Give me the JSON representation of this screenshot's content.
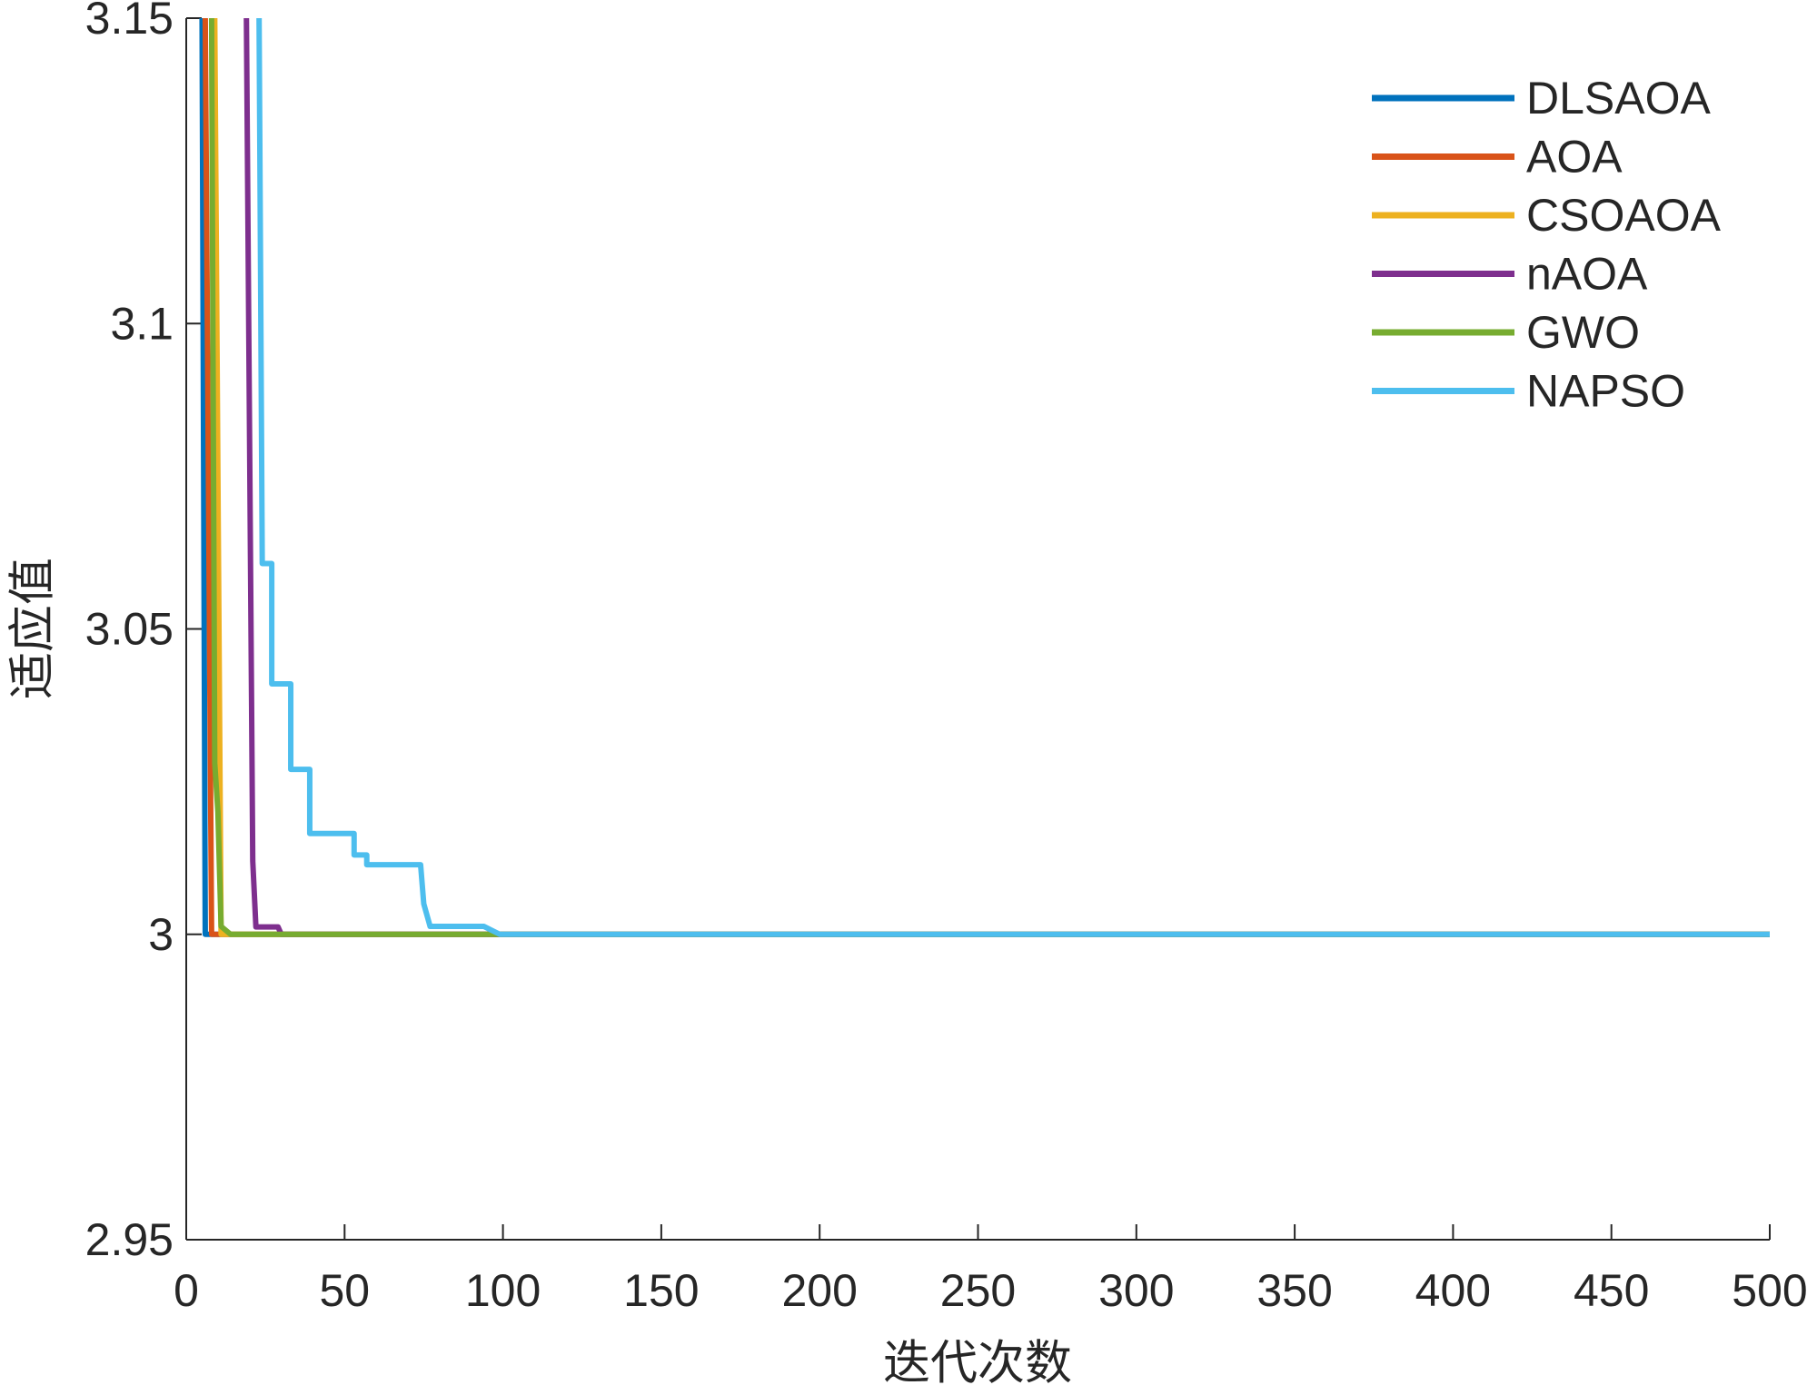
{
  "chart_data": {
    "type": "line",
    "x_label": "迭代次数",
    "y_label": "适应值",
    "xlim": [
      0,
      500
    ],
    "ylim": [
      2.95,
      3.15
    ],
    "xticks": [
      0,
      50,
      100,
      150,
      200,
      250,
      300,
      350,
      400,
      450,
      500
    ],
    "yticks": [
      2.95,
      3,
      3.05,
      3.1,
      3.15
    ],
    "legend": "upper right",
    "series": [
      {
        "name": "DLSAOA",
        "color": "#0072BD",
        "x": [
          5,
          6,
          500
        ],
        "values": [
          3.15,
          3.0,
          3.0
        ]
      },
      {
        "name": "AOA",
        "color": "#D95319",
        "x": [
          6,
          8,
          500
        ],
        "values": [
          3.15,
          3.0,
          3.0
        ]
      },
      {
        "name": "CSOAOA",
        "color": "#EDB120",
        "x": [
          9,
          11,
          500
        ],
        "values": [
          3.15,
          3.0,
          3.0
        ]
      },
      {
        "name": "nAOA",
        "color": "#7E2F8E",
        "x": [
          19,
          21,
          22,
          29,
          30,
          500
        ],
        "values": [
          3.15,
          3.012,
          3.0012,
          3.0012,
          3.0,
          3.0
        ]
      },
      {
        "name": "GWO",
        "color": "#77AC30",
        "x": [
          8,
          9,
          10,
          11,
          14,
          500
        ],
        "values": [
          3.15,
          3.028,
          3.02,
          3.0013,
          3.0,
          3.0
        ]
      },
      {
        "name": "NAPSO",
        "color": "#4DBEEE",
        "x": [
          23,
          24,
          27,
          27,
          33,
          33,
          39,
          39,
          53,
          53,
          57,
          57,
          74,
          75,
          77,
          94,
          99,
          500
        ],
        "values": [
          3.15,
          3.0607,
          3.0607,
          3.041,
          3.041,
          3.027,
          3.027,
          3.0165,
          3.0165,
          3.013,
          3.013,
          3.0114,
          3.0114,
          3.005,
          3.0013,
          3.0013,
          3.0,
          3.0
        ]
      }
    ]
  }
}
